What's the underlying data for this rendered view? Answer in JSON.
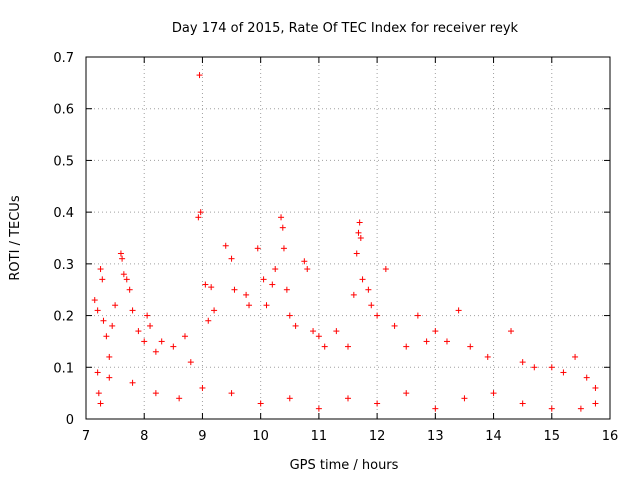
{
  "chart_data": {
    "type": "scatter",
    "title": "Day 174 of 2015, Rate Of TEC Index for receiver reyk",
    "xlabel": "GPS time / hours",
    "ylabel": "ROTI / TECUs",
    "xlim": [
      7,
      16
    ],
    "ylim": [
      0,
      0.7
    ],
    "xticks": [
      "7",
      "8",
      "9",
      "10",
      "11",
      "12",
      "13",
      "14",
      "15",
      "16"
    ],
    "yticks": [
      "0",
      "0.1",
      "0.2",
      "0.3",
      "0.4",
      "0.5",
      "0.6",
      "0.7"
    ],
    "grid": true,
    "marker": "+",
    "color": "#ff0000",
    "series": [
      {
        "name": "ROTI",
        "points": [
          [
            7.15,
            0.23
          ],
          [
            7.2,
            0.21
          ],
          [
            7.25,
            0.29
          ],
          [
            7.28,
            0.27
          ],
          [
            7.3,
            0.19
          ],
          [
            7.22,
            0.05
          ],
          [
            7.25,
            0.03
          ],
          [
            7.35,
            0.16
          ],
          [
            7.4,
            0.12
          ],
          [
            7.45,
            0.18
          ],
          [
            7.5,
            0.22
          ],
          [
            7.6,
            0.32
          ],
          [
            7.62,
            0.31
          ],
          [
            7.65,
            0.28
          ],
          [
            7.7,
            0.27
          ],
          [
            7.75,
            0.25
          ],
          [
            7.8,
            0.21
          ],
          [
            7.9,
            0.17
          ],
          [
            8.0,
            0.15
          ],
          [
            8.05,
            0.2
          ],
          [
            8.1,
            0.18
          ],
          [
            8.2,
            0.13
          ],
          [
            8.3,
            0.15
          ],
          [
            8.5,
            0.14
          ],
          [
            8.7,
            0.16
          ],
          [
            8.8,
            0.11
          ],
          [
            8.95,
            0.665
          ],
          [
            8.93,
            0.39
          ],
          [
            8.97,
            0.4
          ],
          [
            9.05,
            0.26
          ],
          [
            9.1,
            0.19
          ],
          [
            9.15,
            0.255
          ],
          [
            9.2,
            0.21
          ],
          [
            9.4,
            0.335
          ],
          [
            9.5,
            0.31
          ],
          [
            9.55,
            0.25
          ],
          [
            9.75,
            0.24
          ],
          [
            9.8,
            0.22
          ],
          [
            9.95,
            0.33
          ],
          [
            10.05,
            0.27
          ],
          [
            10.1,
            0.22
          ],
          [
            10.2,
            0.26
          ],
          [
            10.25,
            0.29
          ],
          [
            10.35,
            0.39
          ],
          [
            10.38,
            0.37
          ],
          [
            10.4,
            0.33
          ],
          [
            10.45,
            0.25
          ],
          [
            10.5,
            0.2
          ],
          [
            10.75,
            0.305
          ],
          [
            10.8,
            0.29
          ],
          [
            10.6,
            0.18
          ],
          [
            10.9,
            0.17
          ],
          [
            11.0,
            0.16
          ],
          [
            11.1,
            0.14
          ],
          [
            11.3,
            0.17
          ],
          [
            11.5,
            0.14
          ],
          [
            11.6,
            0.24
          ],
          [
            11.68,
            0.36
          ],
          [
            11.7,
            0.38
          ],
          [
            11.72,
            0.35
          ],
          [
            11.65,
            0.32
          ],
          [
            11.75,
            0.27
          ],
          [
            11.85,
            0.25
          ],
          [
            11.9,
            0.22
          ],
          [
            12.0,
            0.2
          ],
          [
            12.15,
            0.29
          ],
          [
            12.3,
            0.18
          ],
          [
            12.5,
            0.14
          ],
          [
            12.7,
            0.2
          ],
          [
            12.85,
            0.15
          ],
          [
            13.0,
            0.17
          ],
          [
            13.2,
            0.15
          ],
          [
            13.4,
            0.21
          ],
          [
            13.6,
            0.14
          ],
          [
            13.9,
            0.12
          ],
          [
            14.3,
            0.17
          ],
          [
            14.5,
            0.11
          ],
          [
            14.7,
            0.1
          ],
          [
            15.0,
            0.1
          ],
          [
            15.2,
            0.09
          ],
          [
            15.4,
            0.12
          ],
          [
            15.6,
            0.08
          ],
          [
            15.75,
            0.06
          ],
          [
            7.2,
            0.09
          ],
          [
            7.4,
            0.08
          ],
          [
            7.8,
            0.07
          ],
          [
            8.2,
            0.05
          ],
          [
            8.6,
            0.04
          ],
          [
            9.0,
            0.06
          ],
          [
            9.5,
            0.05
          ],
          [
            10.0,
            0.03
          ],
          [
            10.5,
            0.04
          ],
          [
            11.0,
            0.02
          ],
          [
            11.5,
            0.04
          ],
          [
            12.0,
            0.03
          ],
          [
            12.5,
            0.05
          ],
          [
            13.0,
            0.02
          ],
          [
            13.5,
            0.04
          ],
          [
            14.0,
            0.05
          ],
          [
            14.5,
            0.03
          ],
          [
            15.0,
            0.02
          ],
          [
            15.5,
            0.02
          ],
          [
            15.75,
            0.03
          ]
        ]
      }
    ]
  }
}
